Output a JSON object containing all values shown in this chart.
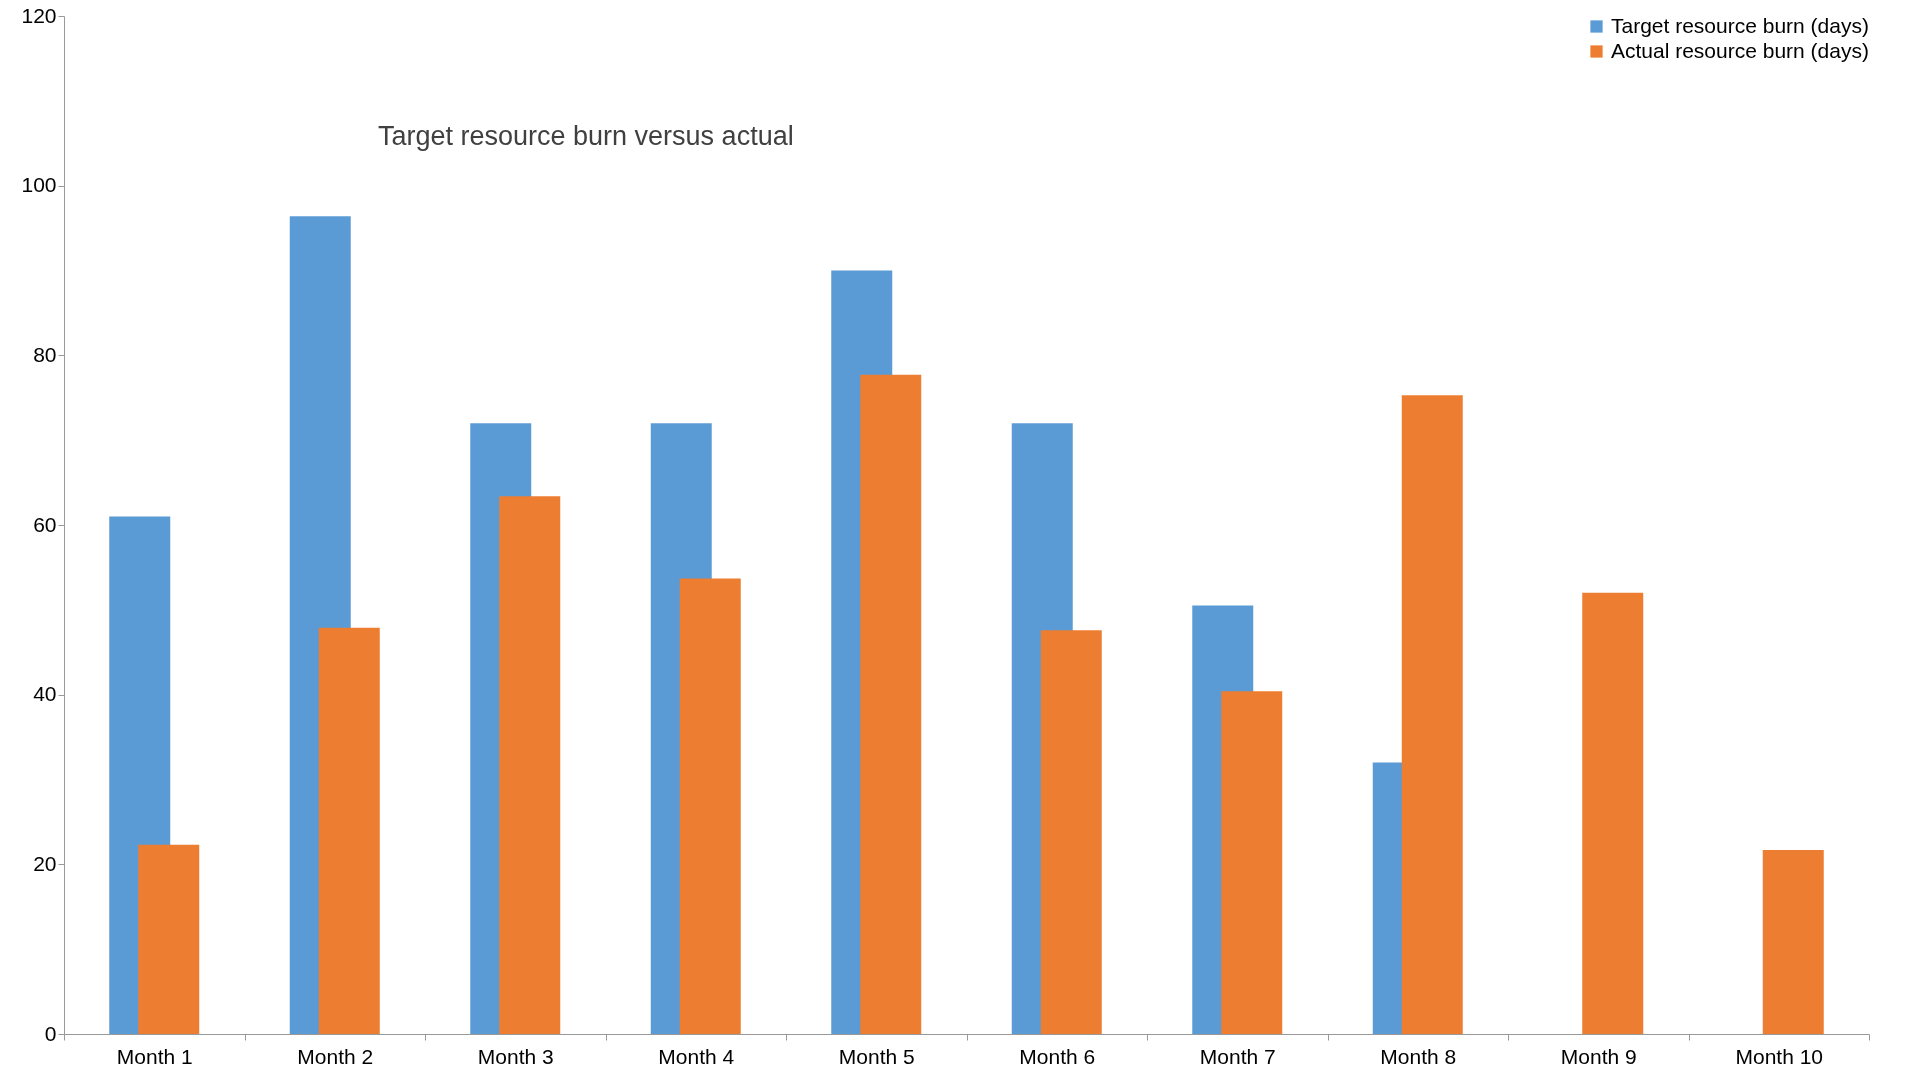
{
  "chart_data": {
    "type": "bar",
    "title": "Target resource burn versus actual",
    "categories": [
      "Month 1",
      "Month 2",
      "Month 3",
      "Month 4",
      "Month 5",
      "Month 6",
      "Month 7",
      "Month 8",
      "Month 9",
      "Month 10"
    ],
    "series": [
      {
        "name": "Target resource burn (days)",
        "color": "#5b9bd5",
        "values": [
          61,
          96.4,
          72,
          72,
          90,
          72,
          50.5,
          32,
          null,
          null
        ]
      },
      {
        "name": "Actual resource burn (days)",
        "color": "#ed7d31",
        "values": [
          22.3,
          47.9,
          63.4,
          53.7,
          77.7,
          47.6,
          40.4,
          75.3,
          52,
          21.7
        ]
      }
    ],
    "ylim": [
      0,
      120
    ],
    "yticks": [
      0,
      20,
      40,
      60,
      80,
      100,
      120
    ],
    "grid": false,
    "legend": "top right"
  }
}
